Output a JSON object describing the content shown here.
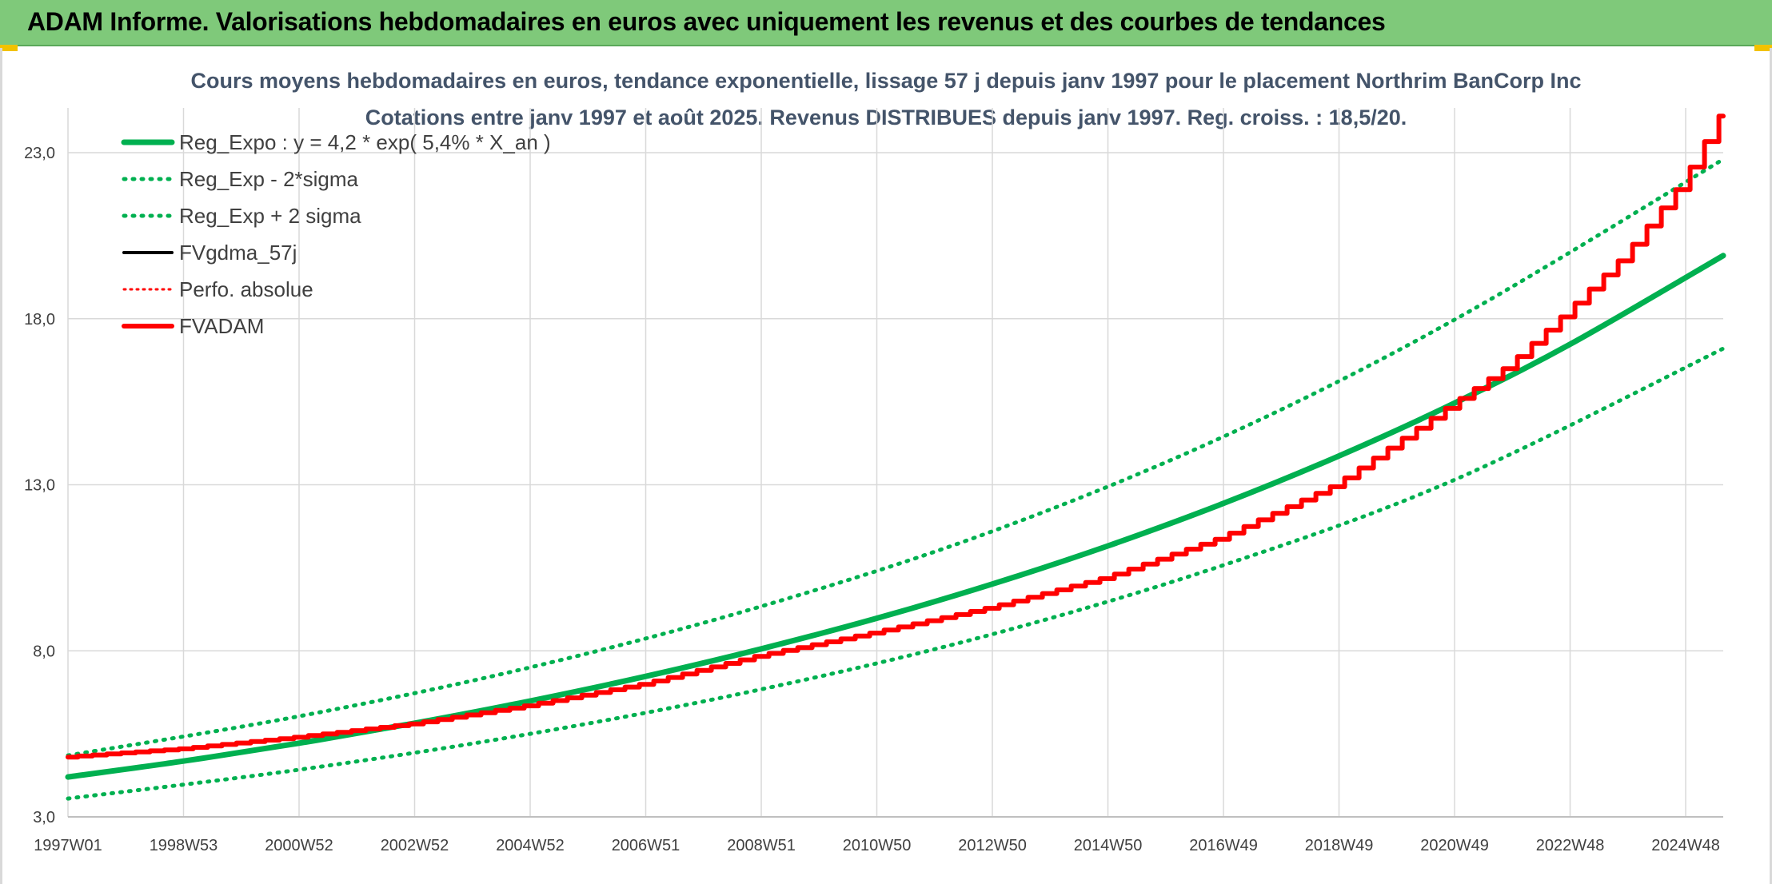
{
  "header": {
    "title": "ADAM Informe. Valorisations hebdomadaires en euros avec uniquement les revenus et des courbes de tendances"
  },
  "colors": {
    "header_bg": "#7fc97a",
    "green": "#00b050",
    "red": "#ff0000",
    "black": "#000000",
    "grid": "#d9d9d9"
  },
  "chart_data": {
    "type": "line",
    "title": "Cours moyens hebdomadaires en euros, tendance exponentielle, lissage 57 j depuis janv 1997 pour le placement Northrim BanCorp Inc",
    "subtitle": "Cotations entre janv 1997 et août 2025. Revenus DISTRIBUES depuis janv 1997. Reg. croiss. : 18,5/20.",
    "x_tick_labels": [
      "1997W01",
      "1998W53",
      "2000W52",
      "2002W52",
      "2004W52",
      "2006W51",
      "2008W51",
      "2010W50",
      "2012W50",
      "2014W50",
      "2016W49",
      "2018W49",
      "2020W49",
      "2022W48",
      "2024W48"
    ],
    "x_tick_years": [
      1997,
      1999,
      2001,
      2003,
      2005,
      2007,
      2009,
      2011,
      2013,
      2015,
      2017,
      2019,
      2021,
      2023,
      2025
    ],
    "x_range": [
      1997.0,
      2025.65
    ],
    "y_tick_labels": [
      "3,0",
      "8,0",
      "13,0",
      "18,0",
      "23,0"
    ],
    "y_ticks": [
      3,
      8,
      13,
      18,
      23
    ],
    "ylim": [
      3,
      23
    ],
    "grid": true,
    "legend_position": "top-left",
    "series": [
      {
        "name": "Reg_Expo : y = 4,2 * exp( 5,4% *  X_an )",
        "style": "solid-green",
        "x": [
          1997,
          1999,
          2001,
          2003,
          2005,
          2007,
          2009,
          2011,
          2013,
          2015,
          2017,
          2019,
          2021,
          2023,
          2025.65
        ],
        "y": [
          4.2,
          4.68,
          5.22,
          5.82,
          6.49,
          7.23,
          8.06,
          8.98,
          10.01,
          11.16,
          12.44,
          13.87,
          15.46,
          17.23,
          19.9
        ]
      },
      {
        "name": "Reg_Exp - 2*sigma",
        "style": "dotted-green",
        "x": [
          1997,
          2001,
          2005,
          2009,
          2013,
          2017,
          2021,
          2025.65
        ],
        "y": [
          3.55,
          4.42,
          5.5,
          6.84,
          8.5,
          10.58,
          13.15,
          17.1
        ]
      },
      {
        "name": "Reg_Exp + 2 sigma",
        "style": "dotted-green",
        "x": [
          1997,
          2001,
          2005,
          2009,
          2013,
          2017,
          2021,
          2025.65
        ],
        "y": [
          4.85,
          6.03,
          7.5,
          9.34,
          11.6,
          14.45,
          17.97,
          22.8
        ]
      },
      {
        "name": "FVgdma_57j",
        "style": "solid-black",
        "x": [
          1997,
          1999,
          2001,
          2003,
          2005,
          2007,
          2009,
          2011,
          2013,
          2015,
          2017,
          2019,
          2021,
          2022,
          2023,
          2024,
          2025,
          2025.65
        ],
        "y": [
          4.8,
          5.05,
          5.4,
          5.8,
          6.35,
          7.0,
          7.85,
          8.55,
          9.3,
          10.2,
          11.4,
          13.0,
          15.4,
          16.6,
          18.2,
          19.9,
          22.1,
          24.1
        ]
      },
      {
        "name": "Perfo. absolue",
        "style": "dotted-red",
        "x": [
          1997,
          1999,
          2001,
          2003,
          2005,
          2007,
          2009,
          2011,
          2013,
          2015,
          2017,
          2019,
          2021,
          2022,
          2023,
          2024,
          2025,
          2025.65
        ],
        "y": [
          4.8,
          5.05,
          5.4,
          5.8,
          6.35,
          7.0,
          7.85,
          8.55,
          9.3,
          10.2,
          11.4,
          13.0,
          15.4,
          16.6,
          18.2,
          19.9,
          22.1,
          24.1
        ]
      },
      {
        "name": "FVADAM",
        "style": "solid-red",
        "x": [
          1997,
          1999,
          2001,
          2003,
          2005,
          2007,
          2009,
          2011,
          2013,
          2015,
          2017,
          2019,
          2021,
          2022,
          2023,
          2024,
          2025,
          2025.65
        ],
        "y": [
          4.8,
          5.05,
          5.4,
          5.8,
          6.35,
          7.0,
          7.85,
          8.55,
          9.3,
          10.2,
          11.4,
          13.0,
          15.4,
          16.6,
          18.2,
          19.9,
          22.1,
          24.1
        ]
      }
    ]
  }
}
